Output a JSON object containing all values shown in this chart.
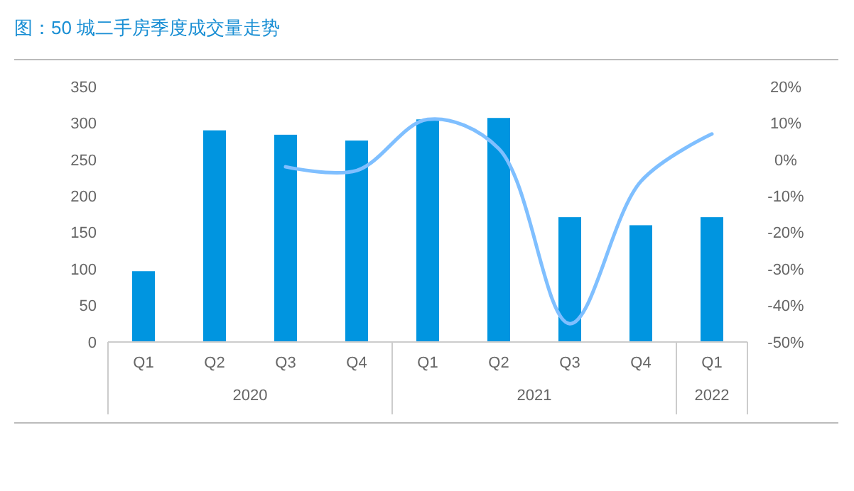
{
  "chart_data": {
    "type": "bar",
    "title": "图：50 城二手房季度成交量走势",
    "categories": [
      "Q1",
      "Q2",
      "Q3",
      "Q4",
      "Q1",
      "Q2",
      "Q3",
      "Q4",
      "Q1"
    ],
    "annotations": [
      "2020",
      "2021",
      "2022"
    ],
    "series": [
      {
        "color": "#0095e0",
        "values": [
          97,
          290,
          284,
          276,
          305,
          307,
          171,
          160,
          171
        ]
      },
      {
        "type": "line",
        "axis": "y2",
        "color": "#7fbfff",
        "values": [
          null,
          null,
          -2,
          -3,
          11,
          3,
          -45,
          -6,
          7
        ]
      }
    ],
    "ylim": [
      0,
      350
    ],
    "yticks": [
      0,
      50,
      100,
      150,
      200,
      250,
      300,
      350
    ],
    "y2lim": [
      -50,
      20
    ],
    "y2ticks": [
      {
        "value": -50,
        "label": "-50%"
      },
      {
        "value": -40,
        "label": "-40%"
      },
      {
        "value": -30,
        "label": "-30%"
      },
      {
        "value": -20,
        "label": "-20%"
      },
      {
        "value": -10,
        "label": "-10%"
      },
      {
        "value": 0,
        "label": "0%"
      },
      {
        "value": 10,
        "label": "10%"
      },
      {
        "value": 20,
        "label": "20%"
      }
    ],
    "grid": false
  }
}
